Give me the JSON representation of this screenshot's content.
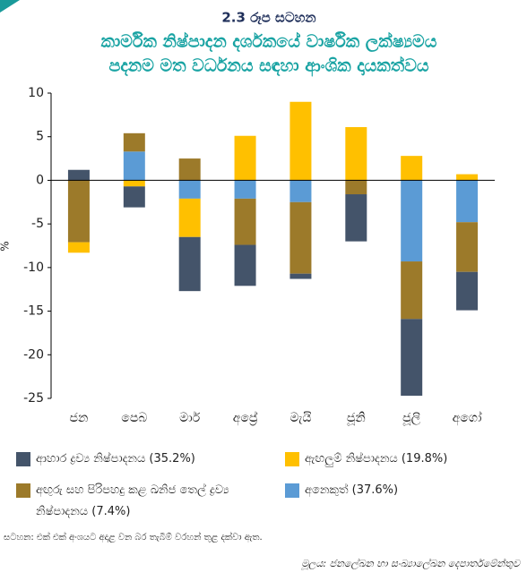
{
  "chart_data": {
    "type": "stacked_bar",
    "label": "2.3 රූප සටහන",
    "title": [
      "කාර්මික නිෂ්පාදන දර්ශකයේ වාර්ෂික ලක්ෂ්‍යමය",
      "පදනම මත වර්ධනය සඳහා ආංශික දායකත්වය"
    ],
    "ylabel": "%",
    "categories": [
      "ජන",
      "පෙබ",
      "මාර්",
      "අප්‍රේ",
      "මැයි",
      "ජූනි",
      "ජූලි",
      "අගෝ"
    ],
    "series": [
      {
        "name": "අනෙකුත් (37.6%)",
        "color": "#5b9bd5",
        "values": [
          null,
          3.3,
          -2.1,
          -2.1,
          -2.5,
          null,
          -9.3,
          -4.8
        ]
      },
      {
        "name": "අඟුරු සහ පිරිපහදු කළ ඛනිජ තෙල් ද්‍රව්‍ය නිෂ්පාදනය (7.4%)",
        "color": "#9c7a2a",
        "values": [
          -7.1,
          2.1,
          2.5,
          -5.3,
          -8.2,
          -1.6,
          -6.6,
          -5.7
        ]
      },
      {
        "name": "ඇඟලුම් නිෂ්පාදනය (19.8%)",
        "color": "#ffc000",
        "values": [
          -1.2,
          -0.7,
          -4.4,
          5.1,
          9.0,
          6.1,
          2.8,
          0.7
        ]
      },
      {
        "name": "ආහාර ද්‍රව්‍ය නිෂ්පාදනය (35.2%)",
        "color": "#44546a",
        "values": [
          1.2,
          -2.4,
          -6.2,
          -4.7,
          -0.6,
          -5.4,
          -8.8,
          -4.4
        ]
      }
    ],
    "ylim": [
      -25,
      10
    ],
    "yticks": [
      10,
      5,
      0,
      -5,
      -10,
      -15,
      -20,
      -25
    ],
    "note": "සටහන: එක් එක් අංශයට අදාළ වන බර තැබීම් වරහන් තුළ දක්වා ඇත.",
    "source": "මූලය: ජනලේඛන හා සංඛ්‍යාලේඛන දෙපාර්තමේන්තුව"
  }
}
